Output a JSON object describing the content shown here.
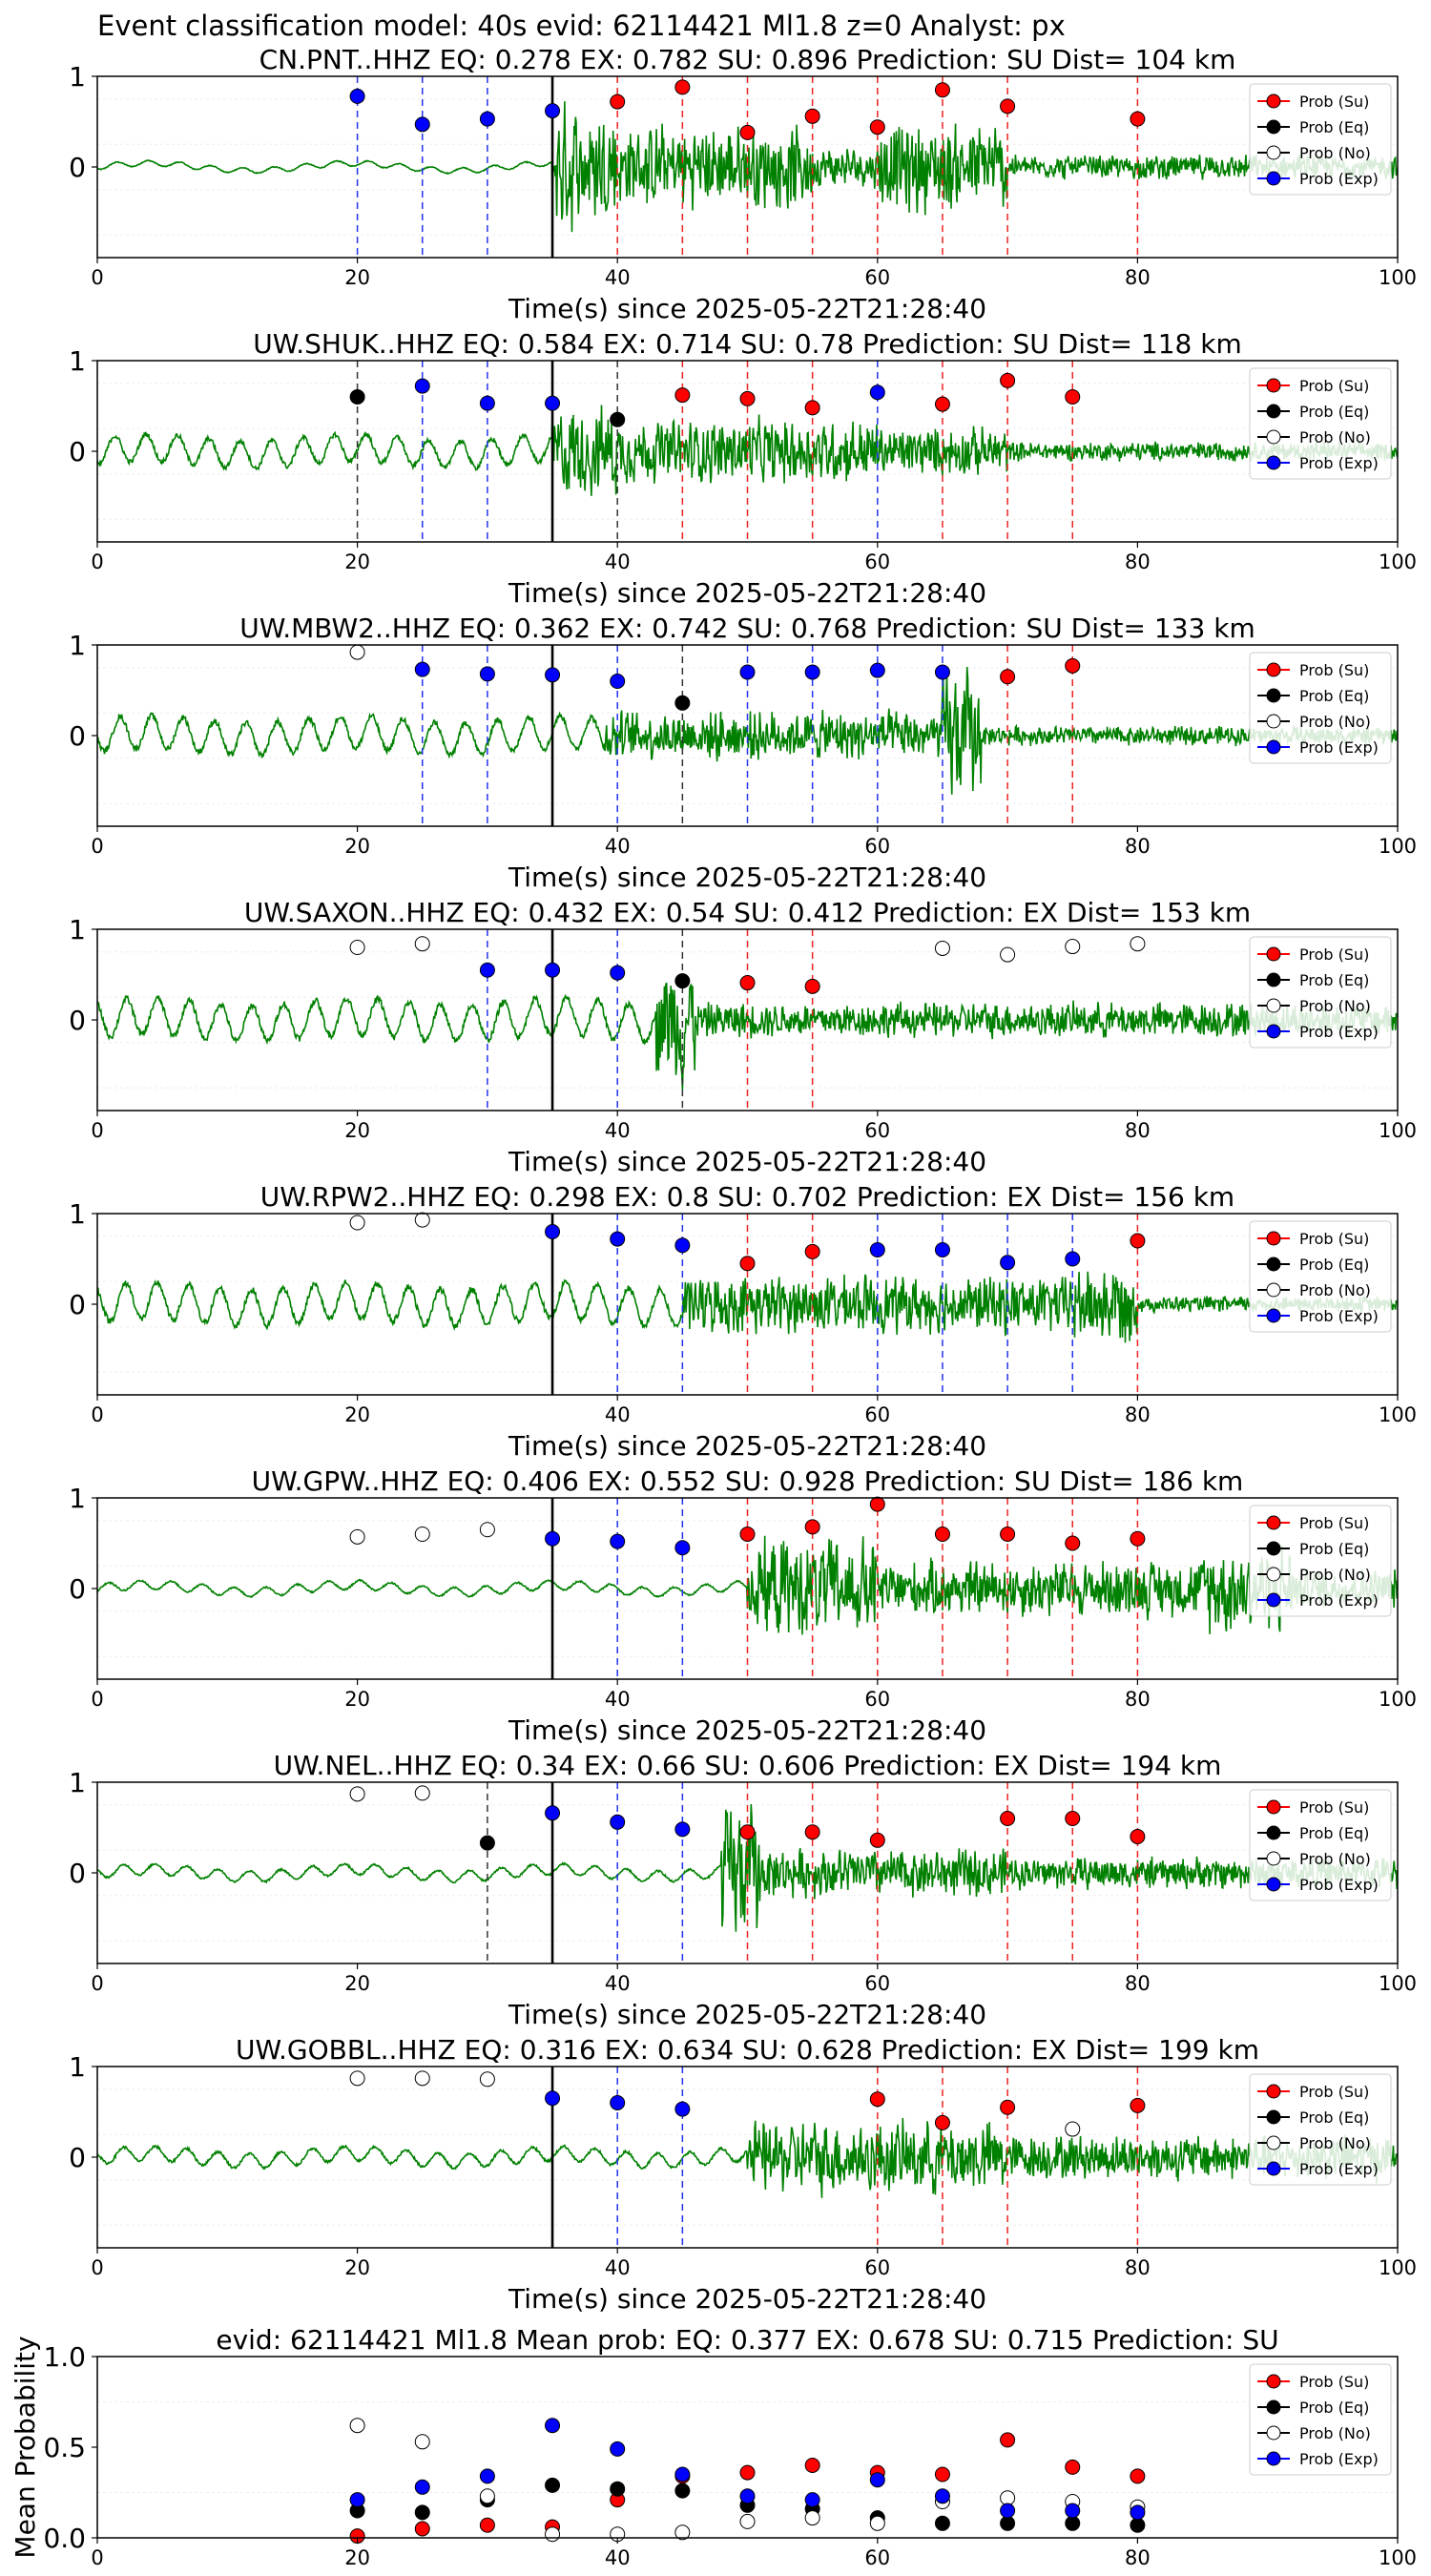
{
  "figure": {
    "suptitle": "Event classification model: 40s evid: 62114421 Ml1.8 z=0 Analyst: px"
  },
  "legend_labels": [
    "Prob (Su)",
    "Prob (Eq)",
    "Prob (No)",
    "Prob (Exp)"
  ],
  "colors": {
    "su": "#ff0000",
    "eq": "#000000",
    "no": "#ffffff",
    "exp": "#0000ff",
    "waveform": "#008000",
    "window_su": "#ee2222",
    "window_eq": "#333333",
    "window_exp": "#2233ee",
    "origin_line": "#000000"
  },
  "chart_data": [
    {
      "type": "line",
      "title": "CN.PNT..HHZ   EQ: 0.278  EX: 0.782  SU: 0.896   Prediction: SU    Dist= 104 km",
      "xlabel": "Time(s) since 2025-05-22T21:28:40",
      "ylabel": "",
      "xlim": [
        0,
        100
      ],
      "ylim": [
        -1,
        1
      ],
      "xticks": [
        "0",
        "20",
        "40",
        "60",
        "80",
        "100"
      ],
      "yticks": [
        "0",
        "1"
      ],
      "origin_line_x": 35,
      "waveform": {
        "onset": 35,
        "segments": [
          [
            0,
            35,
            0.03
          ],
          [
            35,
            40,
            0.75
          ],
          [
            40,
            55,
            0.5
          ],
          [
            55,
            60,
            0.25
          ],
          [
            60,
            70,
            0.55
          ],
          [
            70,
            100,
            0.15
          ]
        ]
      },
      "points": [
        {
          "x": 20,
          "y": 0.78,
          "class": "exp"
        },
        {
          "x": 25,
          "y": 0.47,
          "class": "exp"
        },
        {
          "x": 30,
          "y": 0.53,
          "class": "exp"
        },
        {
          "x": 35,
          "y": 0.62,
          "class": "exp"
        },
        {
          "x": 40,
          "y": 0.72,
          "class": "su"
        },
        {
          "x": 45,
          "y": 0.88,
          "class": "su"
        },
        {
          "x": 50,
          "y": 0.38,
          "class": "su"
        },
        {
          "x": 55,
          "y": 0.56,
          "class": "su"
        },
        {
          "x": 60,
          "y": 0.44,
          "class": "su"
        },
        {
          "x": 65,
          "y": 0.85,
          "class": "su"
        },
        {
          "x": 70,
          "y": 0.67,
          "class": "su"
        },
        {
          "x": 80,
          "y": 0.53,
          "class": "su"
        }
      ]
    },
    {
      "type": "line",
      "title": "UW.SHUK..HHZ   EQ: 0.584  EX: 0.714  SU: 0.78   Prediction: SU    Dist= 118 km",
      "xlabel": "Time(s) since 2025-05-22T21:28:40",
      "ylabel": "",
      "xlim": [
        0,
        100
      ],
      "ylim": [
        -1,
        1
      ],
      "xticks": [
        "0",
        "20",
        "40",
        "60",
        "80",
        "100"
      ],
      "yticks": [
        "0",
        "1"
      ],
      "origin_line_x": 35,
      "waveform": {
        "onset": 35,
        "segments": [
          [
            0,
            35,
            0.15
          ],
          [
            35,
            40,
            0.55
          ],
          [
            40,
            60,
            0.4
          ],
          [
            60,
            70,
            0.3
          ],
          [
            70,
            100,
            0.12
          ]
        ]
      },
      "points": [
        {
          "x": 20,
          "y": 0.6,
          "class": "eq"
        },
        {
          "x": 25,
          "y": 0.72,
          "class": "exp"
        },
        {
          "x": 30,
          "y": 0.53,
          "class": "exp"
        },
        {
          "x": 35,
          "y": 0.53,
          "class": "exp"
        },
        {
          "x": 40,
          "y": 0.35,
          "class": "eq"
        },
        {
          "x": 45,
          "y": 0.62,
          "class": "su"
        },
        {
          "x": 50,
          "y": 0.58,
          "class": "su"
        },
        {
          "x": 55,
          "y": 0.48,
          "class": "su"
        },
        {
          "x": 60,
          "y": 0.65,
          "class": "exp"
        },
        {
          "x": 65,
          "y": 0.52,
          "class": "su"
        },
        {
          "x": 70,
          "y": 0.78,
          "class": "su"
        },
        {
          "x": 75,
          "y": 0.6,
          "class": "su"
        }
      ]
    },
    {
      "type": "line",
      "title": "UW.MBW2..HHZ   EQ: 0.362  EX: 0.742  SU: 0.768   Prediction: SU    Dist= 133 km",
      "xlabel": "Time(s) since 2025-05-22T21:28:40",
      "ylabel": "",
      "xlim": [
        0,
        100
      ],
      "ylim": [
        -1,
        1
      ],
      "xticks": [
        "0",
        "20",
        "40",
        "60",
        "80",
        "100"
      ],
      "yticks": [
        "0",
        "1"
      ],
      "origin_line_x": 35,
      "waveform": {
        "onset": 39,
        "segments": [
          [
            0,
            39,
            0.18
          ],
          [
            39,
            65,
            0.3
          ],
          [
            65,
            68,
            0.8
          ],
          [
            68,
            100,
            0.12
          ]
        ]
      },
      "points": [
        {
          "x": 20,
          "y": 0.92,
          "class": "no"
        },
        {
          "x": 25,
          "y": 0.73,
          "class": "exp"
        },
        {
          "x": 30,
          "y": 0.68,
          "class": "exp"
        },
        {
          "x": 35,
          "y": 0.67,
          "class": "exp"
        },
        {
          "x": 40,
          "y": 0.6,
          "class": "exp"
        },
        {
          "x": 45,
          "y": 0.36,
          "class": "eq"
        },
        {
          "x": 50,
          "y": 0.7,
          "class": "exp"
        },
        {
          "x": 55,
          "y": 0.7,
          "class": "exp"
        },
        {
          "x": 60,
          "y": 0.72,
          "class": "exp"
        },
        {
          "x": 65,
          "y": 0.7,
          "class": "exp"
        },
        {
          "x": 70,
          "y": 0.65,
          "class": "su"
        },
        {
          "x": 75,
          "y": 0.77,
          "class": "su"
        }
      ]
    },
    {
      "type": "line",
      "title": "UW.SAXON..HHZ   EQ: 0.432  EX: 0.54  SU: 0.412   Prediction: EX    Dist= 153 km",
      "xlabel": "Time(s) since 2025-05-22T21:28:40",
      "ylabel": "",
      "xlim": [
        0,
        100
      ],
      "ylim": [
        -1,
        1
      ],
      "xticks": [
        "0",
        "20",
        "40",
        "60",
        "80",
        "100"
      ],
      "yticks": [
        "0",
        "1"
      ],
      "origin_line_x": 35,
      "waveform": {
        "onset": 43,
        "segments": [
          [
            0,
            43,
            0.2
          ],
          [
            43,
            46,
            0.75
          ],
          [
            46,
            100,
            0.22
          ]
        ]
      },
      "points": [
        {
          "x": 20,
          "y": 0.8,
          "class": "no"
        },
        {
          "x": 25,
          "y": 0.84,
          "class": "no"
        },
        {
          "x": 30,
          "y": 0.55,
          "class": "exp"
        },
        {
          "x": 35,
          "y": 0.55,
          "class": "exp"
        },
        {
          "x": 40,
          "y": 0.52,
          "class": "exp"
        },
        {
          "x": 45,
          "y": 0.43,
          "class": "eq"
        },
        {
          "x": 50,
          "y": 0.41,
          "class": "su"
        },
        {
          "x": 55,
          "y": 0.37,
          "class": "su"
        },
        {
          "x": 65,
          "y": 0.79,
          "class": "no"
        },
        {
          "x": 70,
          "y": 0.72,
          "class": "no"
        },
        {
          "x": 75,
          "y": 0.81,
          "class": "no"
        },
        {
          "x": 80,
          "y": 0.84,
          "class": "no"
        }
      ]
    },
    {
      "type": "line",
      "title": "UW.RPW2..HHZ   EQ: 0.298  EX: 0.8  SU: 0.702   Prediction: EX    Dist= 156 km",
      "xlabel": "Time(s) since 2025-05-22T21:28:40",
      "ylabel": "",
      "xlim": [
        0,
        100
      ],
      "ylim": [
        -1,
        1
      ],
      "xticks": [
        "0",
        "20",
        "40",
        "60",
        "80",
        "100"
      ],
      "yticks": [
        "0",
        "1"
      ],
      "origin_line_x": 35,
      "waveform": {
        "onset": 45,
        "segments": [
          [
            0,
            45,
            0.2
          ],
          [
            45,
            75,
            0.35
          ],
          [
            75,
            80,
            0.5
          ],
          [
            80,
            100,
            0.1
          ]
        ]
      },
      "points": [
        {
          "x": 20,
          "y": 0.9,
          "class": "no"
        },
        {
          "x": 25,
          "y": 0.93,
          "class": "no"
        },
        {
          "x": 35,
          "y": 0.8,
          "class": "exp"
        },
        {
          "x": 40,
          "y": 0.72,
          "class": "exp"
        },
        {
          "x": 45,
          "y": 0.65,
          "class": "exp"
        },
        {
          "x": 50,
          "y": 0.45,
          "class": "su"
        },
        {
          "x": 55,
          "y": 0.58,
          "class": "su"
        },
        {
          "x": 60,
          "y": 0.6,
          "class": "exp"
        },
        {
          "x": 65,
          "y": 0.6,
          "class": "exp"
        },
        {
          "x": 70,
          "y": 0.46,
          "class": "exp"
        },
        {
          "x": 75,
          "y": 0.5,
          "class": "exp"
        },
        {
          "x": 80,
          "y": 0.7,
          "class": "su"
        }
      ]
    },
    {
      "type": "line",
      "title": "UW.GPW..HHZ   EQ: 0.406  EX: 0.552  SU: 0.928   Prediction: SU    Dist= 186 km",
      "xlabel": "Time(s) since 2025-05-22T21:28:40",
      "ylabel": "",
      "xlim": [
        0,
        100
      ],
      "ylim": [
        -1,
        1
      ],
      "xticks": [
        "0",
        "20",
        "40",
        "60",
        "80",
        "100"
      ],
      "yticks": [
        "0",
        "1"
      ],
      "origin_line_x": 35,
      "waveform": {
        "onset": 50,
        "segments": [
          [
            0,
            50,
            0.05
          ],
          [
            50,
            60,
            0.6
          ],
          [
            60,
            85,
            0.35
          ],
          [
            85,
            92,
            0.55
          ],
          [
            92,
            100,
            0.25
          ]
        ]
      },
      "points": [
        {
          "x": 20,
          "y": 0.57,
          "class": "no"
        },
        {
          "x": 25,
          "y": 0.6,
          "class": "no"
        },
        {
          "x": 30,
          "y": 0.65,
          "class": "no"
        },
        {
          "x": 35,
          "y": 0.55,
          "class": "exp"
        },
        {
          "x": 40,
          "y": 0.52,
          "class": "exp"
        },
        {
          "x": 45,
          "y": 0.45,
          "class": "exp"
        },
        {
          "x": 50,
          "y": 0.6,
          "class": "su"
        },
        {
          "x": 55,
          "y": 0.68,
          "class": "su"
        },
        {
          "x": 60,
          "y": 0.93,
          "class": "su"
        },
        {
          "x": 65,
          "y": 0.6,
          "class": "su"
        },
        {
          "x": 70,
          "y": 0.6,
          "class": "su"
        },
        {
          "x": 75,
          "y": 0.5,
          "class": "su"
        },
        {
          "x": 80,
          "y": 0.55,
          "class": "su"
        }
      ]
    },
    {
      "type": "line",
      "title": "UW.NEL..HHZ   EQ: 0.34  EX: 0.66  SU: 0.606   Prediction: EX    Dist= 194 km",
      "xlabel": "Time(s) since 2025-05-22T21:28:40",
      "ylabel": "",
      "xlim": [
        0,
        100
      ],
      "ylim": [
        -1,
        1
      ],
      "xticks": [
        "0",
        "20",
        "40",
        "60",
        "80",
        "100"
      ],
      "yticks": [
        "0",
        "1"
      ],
      "origin_line_x": 35,
      "waveform": {
        "onset": 48,
        "segments": [
          [
            0,
            48,
            0.06
          ],
          [
            48,
            51,
            0.8
          ],
          [
            51,
            70,
            0.3
          ],
          [
            70,
            100,
            0.2
          ]
        ]
      },
      "points": [
        {
          "x": 20,
          "y": 0.87,
          "class": "no"
        },
        {
          "x": 25,
          "y": 0.88,
          "class": "no"
        },
        {
          "x": 30,
          "y": 0.33,
          "class": "eq"
        },
        {
          "x": 35,
          "y": 0.66,
          "class": "exp"
        },
        {
          "x": 40,
          "y": 0.56,
          "class": "exp"
        },
        {
          "x": 45,
          "y": 0.48,
          "class": "exp"
        },
        {
          "x": 50,
          "y": 0.45,
          "class": "su"
        },
        {
          "x": 55,
          "y": 0.45,
          "class": "su"
        },
        {
          "x": 60,
          "y": 0.36,
          "class": "su"
        },
        {
          "x": 70,
          "y": 0.6,
          "class": "su"
        },
        {
          "x": 75,
          "y": 0.6,
          "class": "su"
        },
        {
          "x": 80,
          "y": 0.4,
          "class": "su"
        }
      ]
    },
    {
      "type": "line",
      "title": "UW.GOBBL..HHZ   EQ: 0.316  EX: 0.634  SU: 0.628   Prediction: EX    Dist= 199 km",
      "xlabel": "Time(s) since 2025-05-22T21:28:40",
      "ylabel": "",
      "xlim": [
        0,
        100
      ],
      "ylim": [
        -1,
        1
      ],
      "xticks": [
        "0",
        "20",
        "40",
        "60",
        "80",
        "100"
      ],
      "yticks": [
        "0",
        "1"
      ],
      "origin_line_x": 35,
      "waveform": {
        "onset": 50,
        "segments": [
          [
            0,
            50,
            0.08
          ],
          [
            50,
            70,
            0.45
          ],
          [
            70,
            100,
            0.28
          ]
        ]
      },
      "points": [
        {
          "x": 20,
          "y": 0.87,
          "class": "no"
        },
        {
          "x": 25,
          "y": 0.87,
          "class": "no"
        },
        {
          "x": 30,
          "y": 0.86,
          "class": "no"
        },
        {
          "x": 35,
          "y": 0.65,
          "class": "exp"
        },
        {
          "x": 40,
          "y": 0.6,
          "class": "exp"
        },
        {
          "x": 45,
          "y": 0.53,
          "class": "exp"
        },
        {
          "x": 60,
          "y": 0.64,
          "class": "su"
        },
        {
          "x": 65,
          "y": 0.38,
          "class": "su"
        },
        {
          "x": 70,
          "y": 0.55,
          "class": "su"
        },
        {
          "x": 75,
          "y": 0.31,
          "class": "no"
        },
        {
          "x": 80,
          "y": 0.57,
          "class": "su"
        }
      ]
    },
    {
      "type": "scatter",
      "title": "evid: 62114421  Ml1.8   Mean prob:   EQ: 0.377  EX: 0.678  SU: 0.715   Prediction: SU",
      "xlabel": "",
      "ylabel": "Mean Probability",
      "xlim": [
        0,
        100
      ],
      "ylim": [
        0,
        1
      ],
      "xticks": [
        "0",
        "20",
        "40",
        "60",
        "80",
        "100"
      ],
      "yticks": [
        "0.0",
        "0.5",
        "1.0"
      ],
      "x": [
        20,
        25,
        30,
        35,
        40,
        45,
        50,
        55,
        60,
        65,
        70,
        75,
        80
      ],
      "series": [
        {
          "name": "Prob (Su)",
          "class": "su",
          "values": [
            0.01,
            0.05,
            0.07,
            0.06,
            0.21,
            0.34,
            0.36,
            0.4,
            0.36,
            0.35,
            0.54,
            0.39,
            0.34
          ]
        },
        {
          "name": "Prob (Eq)",
          "class": "eq",
          "values": [
            0.15,
            0.14,
            0.21,
            0.29,
            0.27,
            0.26,
            0.18,
            0.16,
            0.11,
            0.08,
            0.08,
            0.08,
            0.07
          ]
        },
        {
          "name": "Prob (No)",
          "class": "no",
          "values": [
            0.62,
            0.53,
            0.23,
            0.02,
            0.02,
            0.03,
            0.09,
            0.11,
            0.08,
            0.2,
            0.22,
            0.2,
            0.17
          ]
        },
        {
          "name": "Prob (Exp)",
          "class": "exp",
          "values": [
            0.21,
            0.28,
            0.34,
            0.62,
            0.49,
            0.35,
            0.23,
            0.21,
            0.32,
            0.23,
            0.15,
            0.15,
            0.14
          ]
        }
      ]
    }
  ]
}
